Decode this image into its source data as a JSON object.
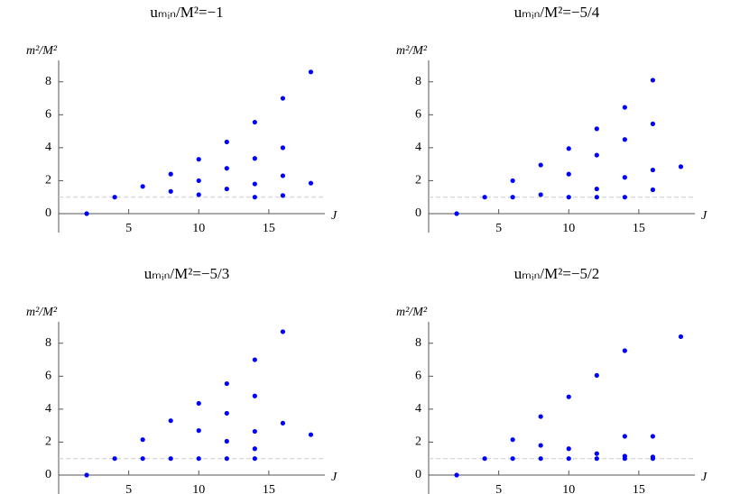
{
  "chart_data": [
    {
      "type": "scatter",
      "title": "uₘᵢₙ/M²=−1",
      "y_label": "m²/M²",
      "x_label": "J",
      "color": "#0000ff",
      "x": [
        2,
        4,
        6,
        8,
        8,
        10,
        10,
        10,
        12,
        12,
        12,
        14,
        14,
        14,
        14,
        16,
        16,
        16,
        16,
        18,
        18
      ],
      "y": [
        0,
        1.0,
        1.65,
        2.4,
        1.35,
        3.3,
        2.0,
        1.15,
        4.35,
        2.75,
        1.5,
        5.55,
        3.35,
        1.8,
        1.0,
        7.0,
        4.0,
        2.3,
        1.1,
        8.6,
        1.85
      ],
      "xlim": [
        0,
        19
      ],
      "ylim": [
        -1.15,
        9.3
      ],
      "xticks": [
        5,
        10,
        15
      ],
      "yticks": [
        0,
        2,
        4,
        6,
        8
      ],
      "reference_line": 1
    },
    {
      "type": "scatter",
      "title": "uₘᵢₙ/M²=−5/4",
      "y_label": "m²/M²",
      "x_label": "J",
      "color": "#0000ff",
      "x": [
        2,
        4,
        6,
        6,
        8,
        8,
        10,
        10,
        10,
        12,
        12,
        12,
        12,
        14,
        14,
        14,
        14,
        16,
        16,
        16,
        16,
        18
      ],
      "y": [
        0,
        1.0,
        2.0,
        1.0,
        2.95,
        1.15,
        3.95,
        2.4,
        1.0,
        5.15,
        3.55,
        1.5,
        1.0,
        6.45,
        4.5,
        2.2,
        1.0,
        8.1,
        5.45,
        2.65,
        1.45,
        2.85
      ],
      "xlim": [
        0,
        19
      ],
      "ylim": [
        -1.15,
        9.3
      ],
      "xticks": [
        5,
        10,
        15
      ],
      "yticks": [
        0,
        2,
        4,
        6,
        8
      ],
      "reference_line": 1
    },
    {
      "type": "scatter",
      "title": "uₘᵢₙ/M²=−5/3",
      "y_label": "m²/M²",
      "x_label": "J",
      "color": "#0000ff",
      "x": [
        2,
        4,
        6,
        6,
        8,
        8,
        10,
        10,
        10,
        12,
        12,
        12,
        12,
        14,
        14,
        14,
        14,
        14,
        16,
        16,
        18
      ],
      "y": [
        0,
        1.0,
        2.15,
        1.0,
        3.3,
        1.0,
        4.35,
        2.7,
        1.0,
        5.55,
        3.75,
        2.05,
        1.0,
        7.0,
        4.8,
        2.65,
        1.6,
        1.0,
        8.7,
        3.15,
        2.45
      ],
      "xlim": [
        0,
        19
      ],
      "ylim": [
        -1.15,
        9.3
      ],
      "xticks": [
        5,
        10,
        15
      ],
      "yticks": [
        0,
        2,
        4,
        6,
        8
      ],
      "reference_line": 1
    },
    {
      "type": "scatter",
      "title": "uₘᵢₙ/M²=−5/2",
      "y_label": "m²/M²",
      "x_label": "J",
      "color": "#0000ff",
      "x": [
        2,
        4,
        6,
        6,
        8,
        8,
        8,
        10,
        10,
        10,
        12,
        12,
        12,
        14,
        14,
        14,
        14,
        16,
        16,
        16,
        18
      ],
      "y": [
        0,
        1.0,
        2.15,
        1.0,
        3.55,
        1.8,
        1.0,
        4.75,
        1.6,
        1.0,
        6.05,
        1.3,
        1.0,
        7.55,
        2.35,
        1.15,
        1.0,
        2.35,
        1.1,
        1.0,
        8.4
      ],
      "xlim": [
        0,
        19
      ],
      "ylim": [
        -1.15,
        9.3
      ],
      "xticks": [
        5,
        10,
        15
      ],
      "yticks": [
        0,
        2,
        4,
        6,
        8
      ],
      "reference_line": 1
    }
  ]
}
